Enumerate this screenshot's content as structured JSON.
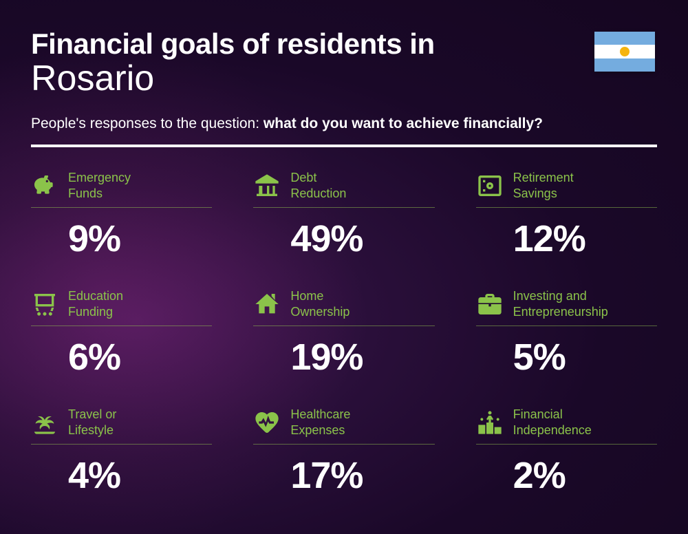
{
  "header": {
    "title_line1": "Financial goals of residents in",
    "title_line2": "Rosario",
    "subtitle_prefix": "People's responses to the question: ",
    "subtitle_bold": "what do you want to achieve financially?"
  },
  "flag": {
    "country": "Argentina",
    "stripe_colors": [
      "#74acdf",
      "#ffffff",
      "#74acdf"
    ],
    "sun_color": "#f6b40e"
  },
  "styling": {
    "accent_color": "#8bc34a",
    "text_color": "#ffffff",
    "label_fontsize": 18,
    "value_fontsize": 54,
    "title_fontsize": 42,
    "subtitle_fontsize": 21,
    "background_gradient": [
      "#4a1a5a",
      "#2a0f3a",
      "#1a0828",
      "#150620"
    ]
  },
  "items": [
    {
      "label": "Emergency\nFunds",
      "value": "9%",
      "icon": "piggy-bank"
    },
    {
      "label": "Debt\nReduction",
      "value": "49%",
      "icon": "bank"
    },
    {
      "label": "Retirement\nSavings",
      "value": "12%",
      "icon": "safe"
    },
    {
      "label": "Education\nFunding",
      "value": "6%",
      "icon": "presentation"
    },
    {
      "label": "Home\nOwnership",
      "value": "19%",
      "icon": "house"
    },
    {
      "label": "Investing and\nEntrepreneurship",
      "value": "5%",
      "icon": "briefcase"
    },
    {
      "label": "Travel or\nLifestyle",
      "value": "4%",
      "icon": "palm"
    },
    {
      "label": "Healthcare\nExpenses",
      "value": "17%",
      "icon": "heart"
    },
    {
      "label": "Financial\nIndependence",
      "value": "2%",
      "icon": "podium"
    }
  ]
}
